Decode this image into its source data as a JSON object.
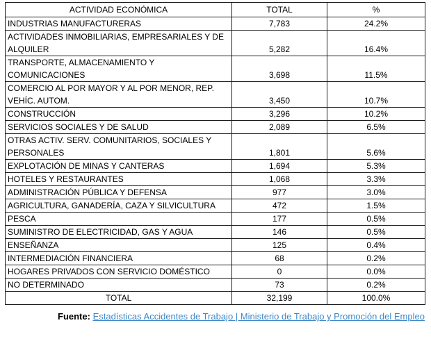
{
  "table": {
    "headers": [
      "ACTIVIDAD ECONÓMICA",
      "TOTAL",
      "%"
    ],
    "rows": [
      {
        "actividad": "INDUSTRIAS MANUFACTURERAS",
        "total": "7,783",
        "pct": "24.2%"
      },
      {
        "actividad": "ACTIVIDADES INMOBILIARIAS, EMPRESARIALES Y DE ALQUILER",
        "total": "5,282",
        "pct": "16.4%"
      },
      {
        "actividad": "TRANSPORTE, ALMACENAMIENTO Y COMUNICACIONES",
        "total": "3,698",
        "pct": "11.5%"
      },
      {
        "actividad": "COMERCIO AL POR MAYOR Y AL POR MENOR, REP. VEHÍC. AUTOM.",
        "total": "3,450",
        "pct": "10.7%"
      },
      {
        "actividad": "CONSTRUCCIÓN",
        "total": "3,296",
        "pct": "10.2%"
      },
      {
        "actividad": "SERVICIOS SOCIALES Y DE SALUD",
        "total": "2,089",
        "pct": "6.5%"
      },
      {
        "actividad": "OTRAS ACTIV. SERV. COMUNITARIOS, SOCIALES Y PERSONALES",
        "total": "1,801",
        "pct": "5.6%"
      },
      {
        "actividad": "EXPLOTACIÓN DE MINAS Y CANTERAS",
        "total": "1,694",
        "pct": "5.3%"
      },
      {
        "actividad": "HOTELES Y RESTAURANTES",
        "total": "1,068",
        "pct": "3.3%"
      },
      {
        "actividad": "ADMINISTRACIÓN PÚBLICA Y DEFENSA",
        "total": "977",
        "pct": "3.0%"
      },
      {
        "actividad": "AGRICULTURA, GANADERÍA, CAZA Y SILVICULTURA",
        "total": "472",
        "pct": "1.5%"
      },
      {
        "actividad": "PESCA",
        "total": "177",
        "pct": "0.5%"
      },
      {
        "actividad": "SUMINISTRO DE ELECTRICIDAD, GAS Y AGUA",
        "total": "146",
        "pct": "0.5%"
      },
      {
        "actividad": "ENSEÑANZA",
        "total": "125",
        "pct": "0.4%"
      },
      {
        "actividad": "INTERMEDIACIÓN FINANCIERA",
        "total": "68",
        "pct": "0.2%"
      },
      {
        "actividad": "HOGARES PRIVADOS CON SERVICIO DOMÉSTICO",
        "total": "0",
        "pct": "0.0%"
      },
      {
        "actividad": "NO DETERMINADO",
        "total": "73",
        "pct": "0.2%"
      },
      {
        "actividad": "TOTAL",
        "total": "32,199",
        "pct": "100.0%",
        "is_total": true
      }
    ]
  },
  "footer": {
    "label": "Fuente: ",
    "link": "Estadísticas Accidentes de Trabajo | Ministerio de Trabajo y Promoción del Empleo"
  },
  "colors": {
    "link_blue": "#3c87c9",
    "border": "#1c1c1c",
    "background": "#ffffff"
  }
}
